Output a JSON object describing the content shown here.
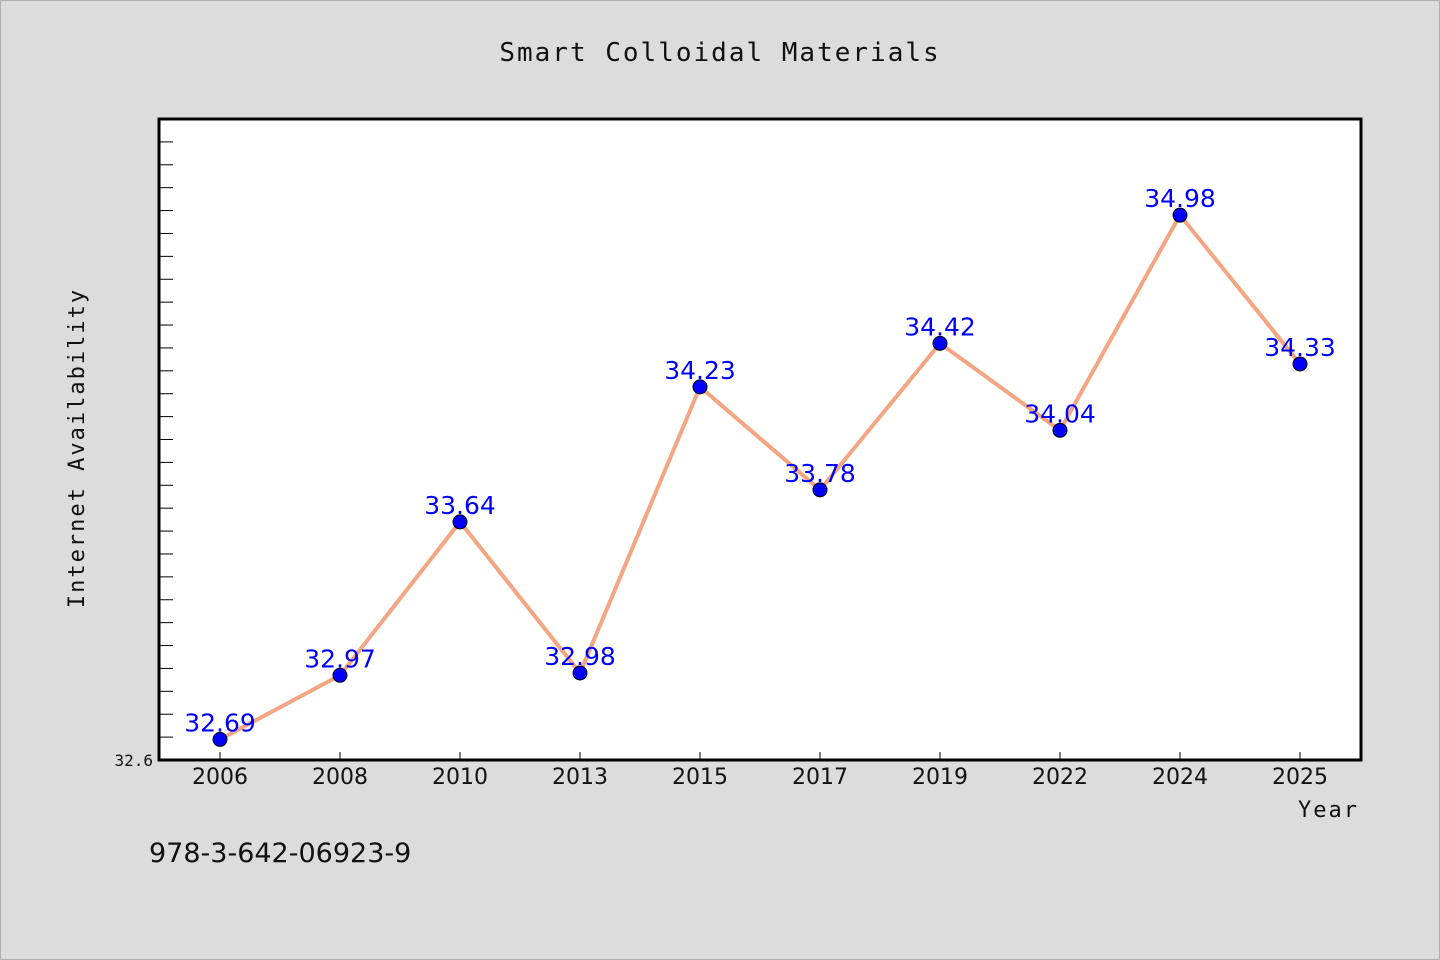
{
  "chart_data": {
    "type": "line",
    "title": "Smart Colloidal Materials",
    "xlabel": "Year",
    "ylabel": "Internet Availability",
    "categories": [
      "2006",
      "2008",
      "2010",
      "2013",
      "2015",
      "2017",
      "2019",
      "2022",
      "2024",
      "2025"
    ],
    "series": [
      {
        "values": [
          32.69,
          32.97,
          33.64,
          32.98,
          34.23,
          33.78,
          34.42,
          34.04,
          34.98,
          34.33
        ],
        "line_color": "#f4a582",
        "marker_color": "#0000ff"
      }
    ],
    "yticks": [
      32.6
    ],
    "ylim": [
      32.6,
      35.4
    ],
    "grid": false,
    "legend": "none"
  },
  "footer": {
    "isbn": "978-3-642-06923-9"
  },
  "colors": {
    "background": "#dcdcdc",
    "plot_background": "#ffffff",
    "line": "#f4a582",
    "marker": "#0000ff",
    "data_label": "#0000ff"
  }
}
